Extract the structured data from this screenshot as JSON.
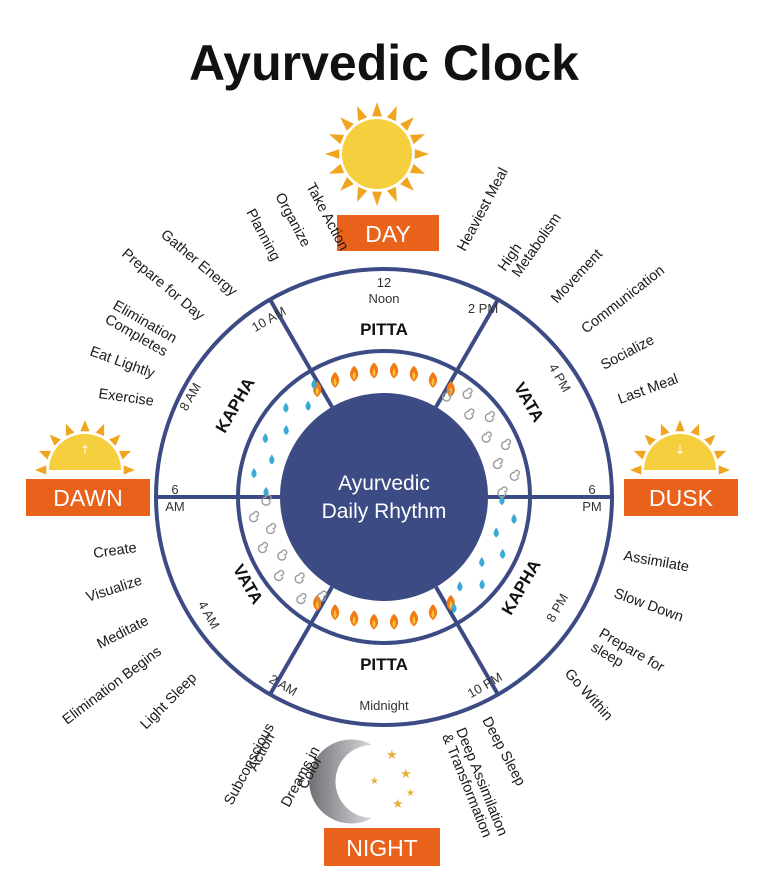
{
  "title": "Ayurvedic Clock",
  "colors": {
    "ring": "#3c4b84",
    "center_fill": "#3c4b84",
    "badge": "#e8621c",
    "sun": "#f5cf3d",
    "sun_rays": "#f0a51f",
    "fire": "#f07a14",
    "water": "#3aaad6",
    "wind": "#9a9a9a"
  },
  "center": {
    "line1": "Ayurvedic",
    "line2": "Daily Rhythm"
  },
  "badges": {
    "day": "DAY",
    "dawn": "DAWN",
    "dusk": "DUSK",
    "night": "NIGHT"
  },
  "times": {
    "noon_num": "12",
    "noon_word": "Noon",
    "t2pm": "2 PM",
    "t4pm": "4 PM",
    "t6pm_num": "6",
    "t6pm_ampm": "PM",
    "t8pm": "8 PM",
    "t10pm": "10 PM",
    "midnight": "Midnight",
    "t2am": "2 AM",
    "t4am": "4 AM",
    "t6am_num": "6",
    "t6am_ampm": "AM",
    "t8am": "8 AM",
    "t10am": "10 AM"
  },
  "doshas": {
    "pitta_top": "PITTA",
    "vata_right": "VATA",
    "kapha_right": "KAPHA",
    "pitta_bottom": "PITTA",
    "vata_left": "VATA",
    "kapha_left": "KAPHA"
  },
  "activities": {
    "take_action": "Take Action",
    "organize": "Organize",
    "planning": "Planning",
    "gather_energy": "Gather Energy",
    "prepare_for_day": "Prepare for Day",
    "elimination_completes_1": "Elimination",
    "elimination_completes_2": "Completes",
    "eat_lightly": "Eat Lightly",
    "exercise": "Exercise",
    "heaviest_meal": "Heaviest Meal",
    "high_metabolism_1": "High",
    "high_metabolism_2": "Metabolism",
    "movement": "Movement",
    "communication": "Communication",
    "socialize": "Socialize",
    "last_meal": "Last Meal",
    "assimilate": "Assimilate",
    "slow_down": "Slow Down",
    "prepare_for_sleep_1": "Prepare for",
    "prepare_for_sleep_2": "sleep",
    "go_within": "Go Within",
    "deep_sleep": "Deep Sleep",
    "deep_assimilation_1": "Deep Assimilation",
    "deep_assimilation_2": "& Transformation",
    "create": "Create",
    "visualize": "Visualize",
    "meditate": "Meditate",
    "elimination_begins": "Elimination Begins",
    "light_sleep": "Light Sleep",
    "subconscious_action_1": "Subconscious",
    "subconscious_action_2": "Action",
    "dreams_in_color_1": "Dreams in",
    "dreams_in_color_2": "Color"
  },
  "icons": {
    "sun": "sun-icon",
    "sunrise": "sunrise-icon",
    "sunset": "sunset-icon",
    "moon": "crescent-moon-icon",
    "fire": "fire-icon",
    "water": "water-drops-icon",
    "wind": "wind-swirl-icon"
  }
}
